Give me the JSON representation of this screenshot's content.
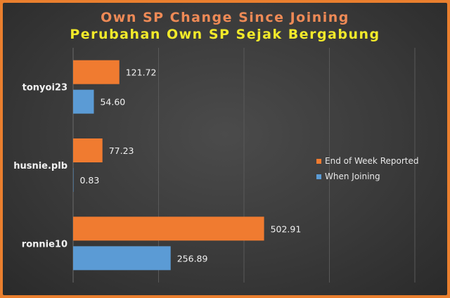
{
  "chart_data": {
    "type": "bar",
    "orientation": "horizontal",
    "title": "Own SP Change Since Joining",
    "subtitle": "Perubahan Own SP Sejak Bergabung",
    "categories": [
      "tonyoi23",
      "husnie.plb",
      "ronnie10"
    ],
    "series": [
      {
        "name": "End of Week Reported",
        "color": "#f07b30",
        "values": [
          121.72,
          77.23,
          502.91
        ]
      },
      {
        "name": "When Joining",
        "color": "#5b9bd5",
        "values": [
          54.6,
          0.83,
          256.89
        ]
      }
    ],
    "data_labels": [
      [
        "121.72",
        "77.23",
        "502.91"
      ],
      [
        "54.60",
        "0.83",
        "256.89"
      ]
    ],
    "xlim": [
      0,
      900
    ],
    "grid": true,
    "legend_position": "right"
  }
}
